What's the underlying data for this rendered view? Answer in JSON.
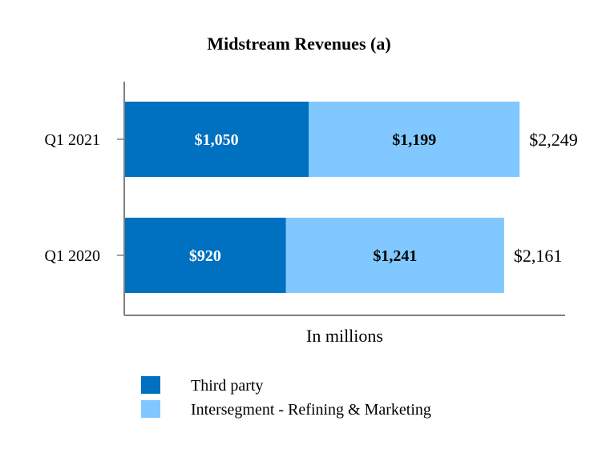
{
  "chart_data": {
    "type": "bar",
    "orientation": "horizontal",
    "stacked": true,
    "title": "Midstream Revenues (a)",
    "xlabel": "In millions",
    "ylabel": "",
    "categories": [
      "Q1 2021",
      "Q1 2020"
    ],
    "series": [
      {
        "name": "Third party",
        "values": [
          1050,
          920
        ],
        "labels": [
          "$1,050",
          "$920"
        ],
        "color": "#0070c0",
        "label_color": "#ffffff"
      },
      {
        "name": "Intersegment - Refining & Marketing",
        "values": [
          1199,
          1241
        ],
        "labels": [
          "$1,199",
          "$1,241"
        ],
        "color": "#80c8ff",
        "label_color": "#000000"
      }
    ],
    "totals": [
      2249,
      2161
    ],
    "total_labels": [
      "$2,249",
      "$2,161"
    ],
    "xlim": [
      0,
      2400
    ],
    "grid": false,
    "legend_position": "bottom-left"
  }
}
